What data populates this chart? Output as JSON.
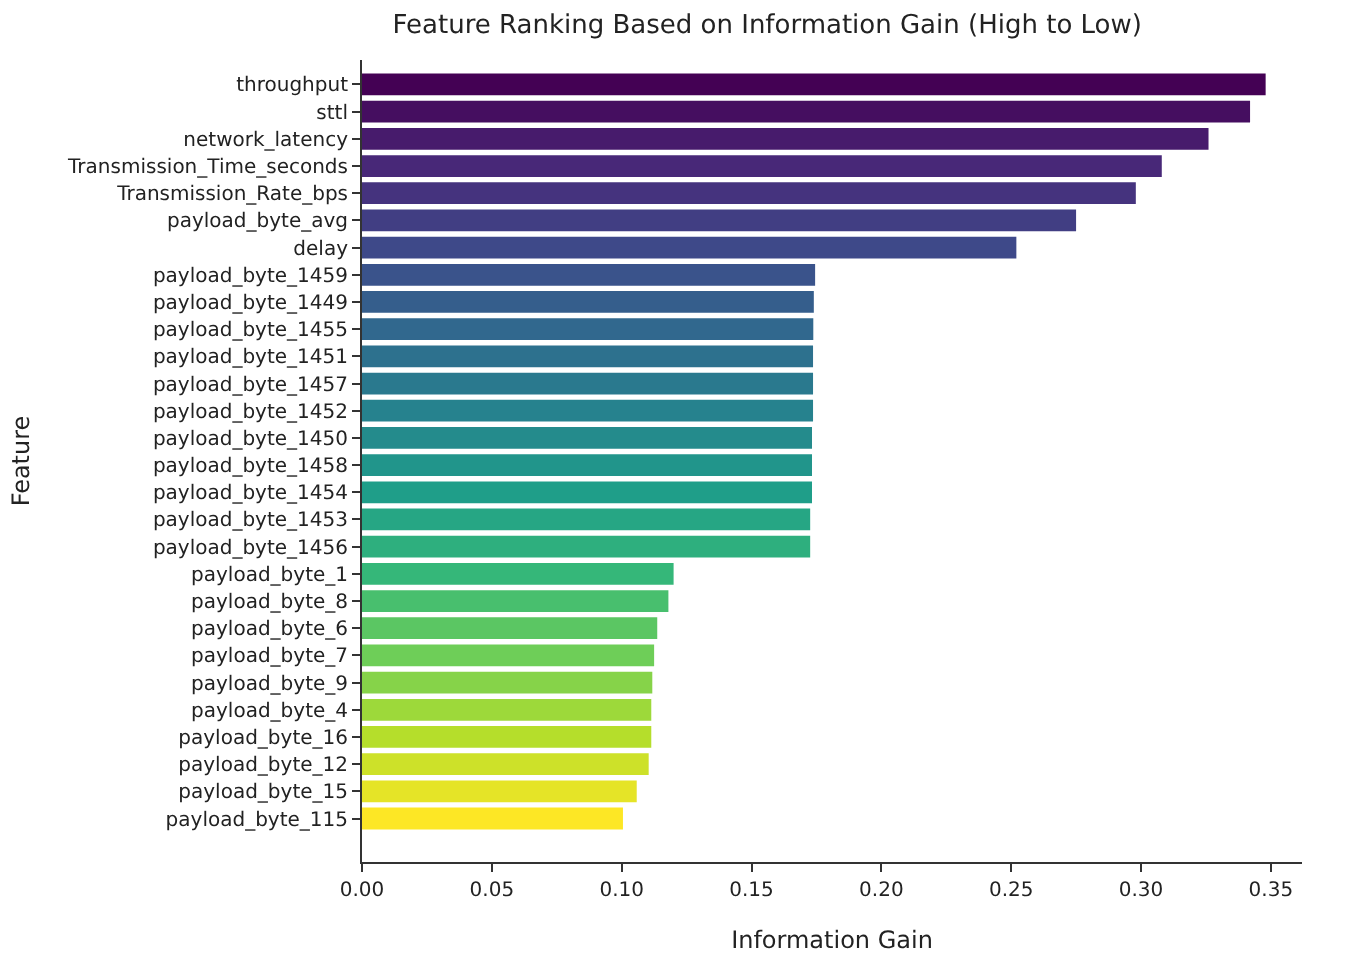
{
  "chart_data": {
    "type": "bar",
    "orientation": "horizontal",
    "title": "Feature Ranking Based on Information Gain (High to Low)",
    "xlabel": "Information Gain",
    "ylabel": "Feature",
    "categories": [
      "throughput",
      "sttl",
      "network_latency",
      "Transmission_Time_seconds",
      "Transmission_Rate_bps",
      "payload_byte_avg",
      "delay",
      "payload_byte_1459",
      "payload_byte_1449",
      "payload_byte_1455",
      "payload_byte_1451",
      "payload_byte_1457",
      "payload_byte_1452",
      "payload_byte_1450",
      "payload_byte_1458",
      "payload_byte_1454",
      "payload_byte_1453",
      "payload_byte_1456",
      "payload_byte_1",
      "payload_byte_8",
      "payload_byte_6",
      "payload_byte_7",
      "payload_byte_9",
      "payload_byte_4",
      "payload_byte_16",
      "payload_byte_12",
      "payload_byte_15",
      "payload_byte_115"
    ],
    "values": [
      0.348,
      0.342,
      0.326,
      0.308,
      0.298,
      0.275,
      0.252,
      0.1745,
      0.174,
      0.1738,
      0.1737,
      0.1737,
      0.1737,
      0.1733,
      0.1733,
      0.1733,
      0.1726,
      0.1726,
      0.12,
      0.118,
      0.1137,
      0.1125,
      0.1118,
      0.1114,
      0.1114,
      0.1104,
      0.1058,
      0.1005
    ],
    "colors": [
      "#440154",
      "#450e60",
      "#471b6c",
      "#482878",
      "#45337e",
      "#413e83",
      "#3e4989",
      "#3a538b",
      "#355e8c",
      "#31688e",
      "#2d718e",
      "#2a798e",
      "#26828e",
      "#248b8c",
      "#21958b",
      "#1f9e89",
      "#26a684",
      "#2eaf7e",
      "#35b779",
      "#48bf6e",
      "#5bc663",
      "#6ece58",
      "#86d349",
      "#9dd93a",
      "#b5de2b",
      "#cde129",
      "#e5e427",
      "#fde725"
    ],
    "xlim": [
      0,
      0.362
    ],
    "xticks": [
      {
        "value": 0,
        "label": "0.00"
      },
      {
        "value": 0.05,
        "label": "0.05"
      },
      {
        "value": 0.1,
        "label": "0.10"
      },
      {
        "value": 0.15,
        "label": "0.15"
      },
      {
        "value": 0.2,
        "label": "0.20"
      },
      {
        "value": 0.25,
        "label": "0.25"
      },
      {
        "value": 0.3,
        "label": "0.30"
      },
      {
        "value": 0.35,
        "label": "0.35"
      }
    ],
    "grid": false,
    "legend": false
  }
}
